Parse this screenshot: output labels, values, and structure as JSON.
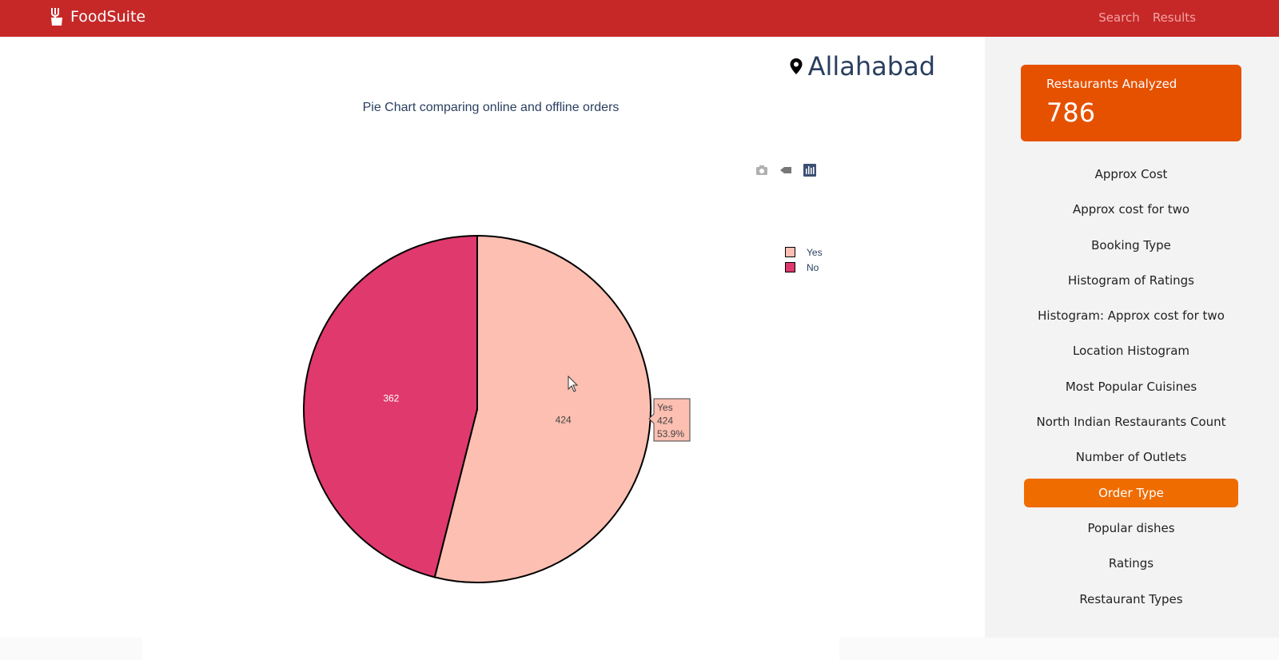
{
  "navbar": {
    "brand": "FoodSuite",
    "links": [
      "Search",
      "Results"
    ]
  },
  "location": "Allahabad",
  "chart_data": {
    "type": "pie",
    "title": "Pie Chart comparing online and offline orders",
    "labels": [
      "Yes",
      "No"
    ],
    "values": [
      424,
      362
    ],
    "colors": [
      "#fcbfb1",
      "#e0396e"
    ],
    "legend_position": "top-right",
    "hover": {
      "label": "Yes",
      "value": "424",
      "percent": "53.9%"
    }
  },
  "sidebar": {
    "stat_label": "Restaurants Analyzed",
    "stat_value": "786",
    "menu": [
      "Approx Cost",
      "Approx cost for two",
      "Booking Type",
      "Histogram of Ratings",
      "Histogram: Approx cost for two",
      "Location Histogram",
      "Most Popular Cuisines",
      "North Indian Restaurants Count",
      "Number of Outlets",
      "Order Type",
      "Popular dishes",
      "Ratings",
      "Restaurant Types"
    ],
    "active_index": 9
  },
  "colors": {
    "navbar": "#c62828",
    "card": "#e65100",
    "active": "#ef6c00"
  }
}
